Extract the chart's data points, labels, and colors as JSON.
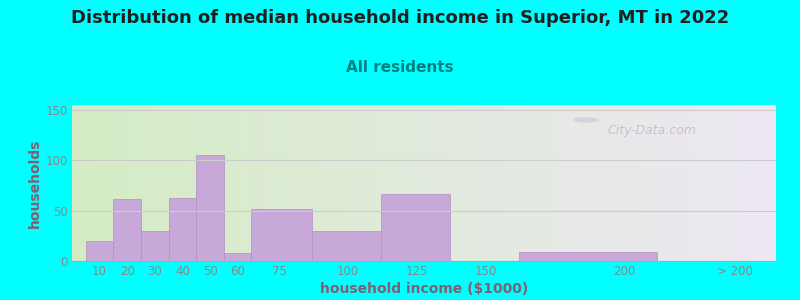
{
  "title": "Distribution of median household income in Superior, MT in 2022",
  "subtitle": "All residents",
  "xlabel": "household income ($1000)",
  "ylabel": "households",
  "title_fontsize": 13,
  "subtitle_fontsize": 11,
  "axis_label_fontsize": 10,
  "background_color": "#00FFFF",
  "bar_color": "#C8A8D8",
  "bar_edge_color": "#B090C0",
  "values": [
    20,
    62,
    30,
    63,
    105,
    8,
    52,
    30,
    67,
    0,
    9,
    0
  ],
  "bar_lefts": [
    5,
    15,
    25,
    35,
    45,
    55,
    65,
    87,
    112,
    137,
    162,
    215
  ],
  "bar_widths": [
    10,
    10,
    10,
    10,
    10,
    10,
    22,
    25,
    25,
    25,
    50,
    25
  ],
  "xtick_positions": [
    10,
    20,
    30,
    40,
    50,
    60,
    75,
    100,
    125,
    150,
    200,
    240
  ],
  "xtick_labels": [
    "10",
    "20",
    "30",
    "40",
    "50",
    "60",
    "75",
    "100",
    "125",
    "150",
    "200",
    "> 200"
  ],
  "xlim": [
    0,
    255
  ],
  "ylim": [
    0,
    155
  ],
  "yticks": [
    0,
    50,
    100,
    150
  ],
  "plot_bg_left": "#D4ECC4",
  "plot_bg_right": "#EEE8F4",
  "watermark_text": "City-Data.com",
  "grid_color": "#CCCCCC",
  "tick_color": "#888888",
  "title_color": "#202020",
  "subtitle_color": "#008080",
  "ylabel_color": "#806070",
  "xlabel_color": "#806070"
}
